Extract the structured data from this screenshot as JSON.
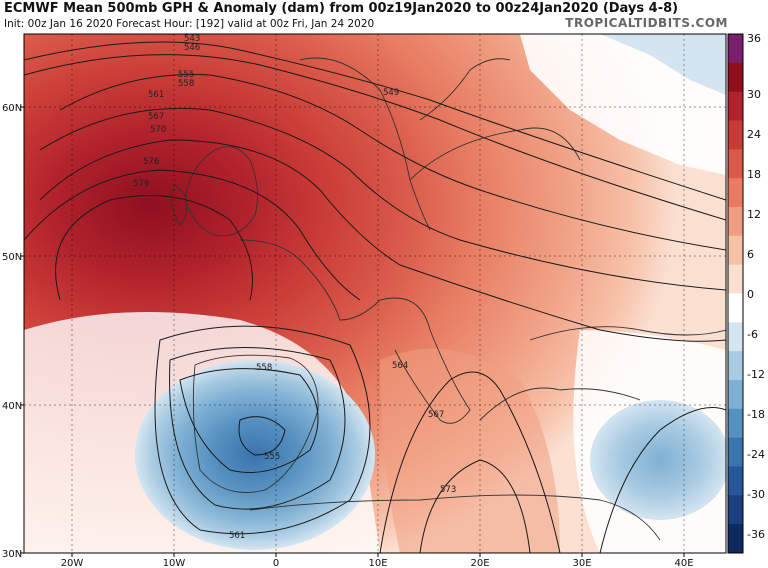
{
  "header": {
    "title": "ECMWF Mean 500mb GPH & Anomaly (dam) from 00z19Jan2020 to 00z24Jan2020 (Days 4-8)",
    "subtitle": "Init: 00z Jan 16 2020   Forecast Hour: [192]   valid at 00z Fri, Jan 24 2020",
    "brand": "TROPICALTIDBITS.COM"
  },
  "axes": {
    "lat_labels": [
      "60N",
      "50N",
      "40N",
      "30N"
    ],
    "lon_labels": [
      "20W",
      "10W",
      "0",
      "10E",
      "20E",
      "30E",
      "40E"
    ]
  },
  "colorbar": {
    "ticks": [
      "36",
      "30",
      "24",
      "18",
      "12",
      "6",
      "0",
      "-6",
      "-12",
      "-18",
      "-24",
      "-30",
      "-36"
    ],
    "colors": [
      "#7a1f6b",
      "#8f0f1f",
      "#b0222c",
      "#c83a36",
      "#d9594a",
      "#e77c62",
      "#f09e82",
      "#f7c1a8",
      "#fbe0d2",
      "#ffffff",
      "#d4e5f1",
      "#a9cbe2",
      "#7fb0d3",
      "#5590c0",
      "#3a73ad",
      "#27579a",
      "#1b3f7f",
      "#0f2a61"
    ]
  },
  "contour_labels": [
    "543",
    "546",
    "555",
    "558",
    "561",
    "567",
    "570",
    "576",
    "579",
    "549",
    "558",
    "564",
    "567",
    "555",
    "561",
    "573"
  ],
  "anomaly": {
    "unit": "dam"
  }
}
